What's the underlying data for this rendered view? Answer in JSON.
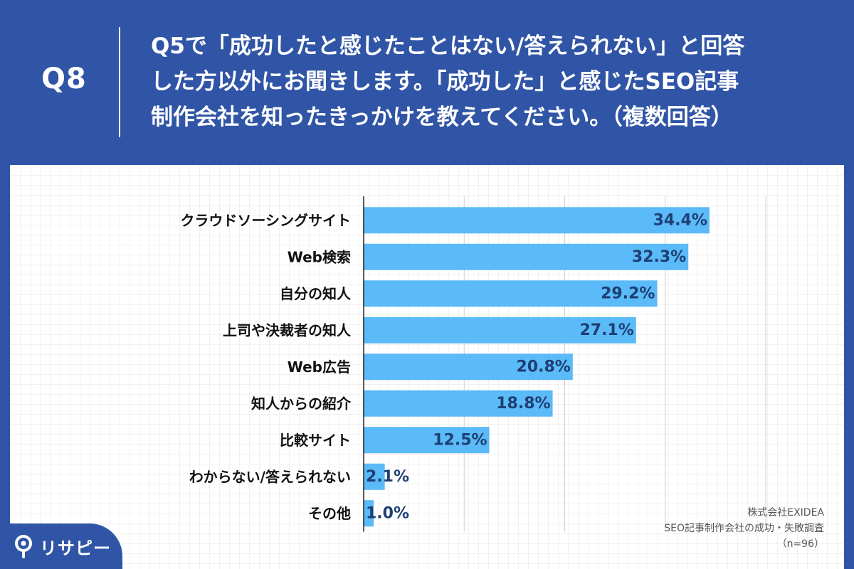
{
  "header": {
    "label": "Q8",
    "question_lines": [
      "Q5で「成功したと感じたことはない/答えられない」と回答",
      "した方以外にお聞きします。「成功した」と感じたSEO記事",
      "制作会社を知ったきっかけを教えてください。（複数回答）"
    ]
  },
  "chart_data": {
    "type": "bar",
    "orientation": "horizontal",
    "categories": [
      "クラウドソーシングサイト",
      "Web検索",
      "自分の知人",
      "上司や決裁者の知人",
      "Web広告",
      "知人からの紹介",
      "比較サイト",
      "わからない/答えられない",
      "その他"
    ],
    "values": [
      34.4,
      32.3,
      29.2,
      27.1,
      20.8,
      18.8,
      12.5,
      2.1,
      1.0
    ],
    "value_labels": [
      "34.4%",
      "32.3%",
      "29.2%",
      "27.1%",
      "20.8%",
      "18.8%",
      "12.5%",
      "2.1%",
      "1.0%"
    ],
    "xlim": [
      0,
      40
    ],
    "grid": true,
    "bar_color": "#5bbaf8",
    "label_color": "#1e3f73"
  },
  "source": {
    "lines": [
      "株式会社EXIDEA",
      "SEO記事制作会社の成功・失敗調査",
      "（n=96）"
    ]
  },
  "brand": {
    "name": "リサピー",
    "bg_color": "#3155a6"
  }
}
